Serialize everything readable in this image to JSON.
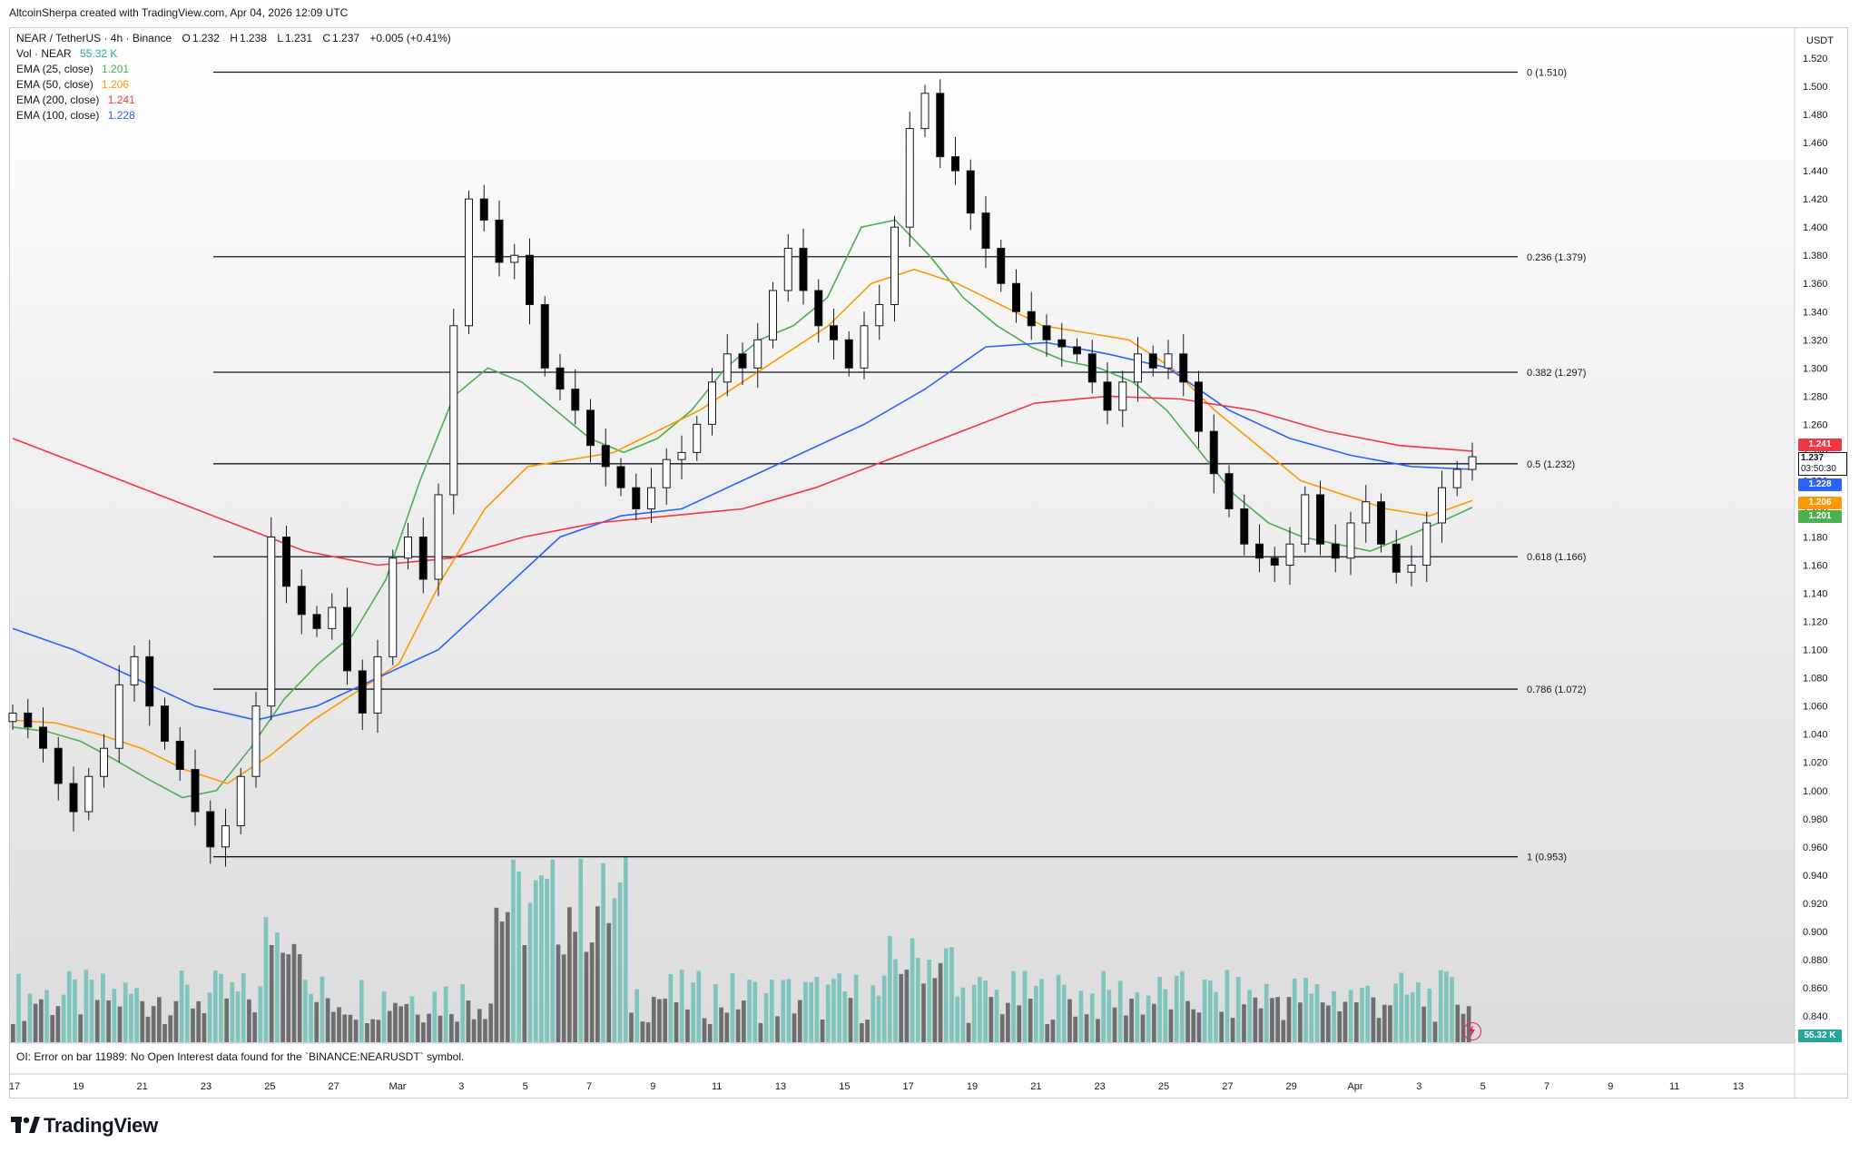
{
  "header": {
    "credit": "AltcoinSherpa created with TradingView.com, Apr 04, 2026 12:09 UTC"
  },
  "legend": {
    "symbol": "NEAR / TetherUS · 4h · Binance",
    "open_label": "O",
    "open": "1.232",
    "high_label": "H",
    "high": "1.238",
    "low_label": "L",
    "low": "1.231",
    "close_label": "C",
    "close": "1.237",
    "change": "+0.005 (+0.41%)",
    "volume": {
      "label": "Vol · NEAR",
      "value": "55.32 K"
    },
    "indicators": [
      {
        "label": "EMA (25, close)",
        "value": "1.201",
        "color": "#4caf50"
      },
      {
        "label": "EMA (50, close)",
        "value": "1.206",
        "color": "#ff9800"
      },
      {
        "label": "EMA (200, close)",
        "value": "1.241",
        "color": "#f23645"
      },
      {
        "label": "EMA (100, close)",
        "value": "1.228",
        "color": "#2962ff"
      }
    ]
  },
  "price_axis": {
    "currency": "USDT",
    "last_price": "1.237",
    "countdown": "03:50:30",
    "volume_tag": "55.32 K"
  },
  "oi_error": "OI: Error on bar 11989: No Open Interest data found for the `BINANCE:NEARUSDT` symbol.",
  "brand": "TradingView",
  "colors": {
    "up": "#ffffff",
    "down": "#000000",
    "vol_up": "#7fc4bd",
    "vol_down": "#6e6e6e",
    "ema25": "#4caf50",
    "ema50": "#ff9800",
    "ema100": "#2962ff",
    "ema200": "#f23645"
  },
  "chart_data": {
    "type": "candlestick",
    "ylim": [
      0.82,
      1.53
    ],
    "y_ticks": [
      "1.520",
      "1.500",
      "1.480",
      "1.460",
      "1.440",
      "1.420",
      "1.400",
      "1.380",
      "1.360",
      "1.340",
      "1.320",
      "1.300",
      "1.280",
      "1.260",
      "1.240",
      "1.220",
      "1.200",
      "1.180",
      "1.160",
      "1.140",
      "1.120",
      "1.100",
      "1.080",
      "1.060",
      "1.040",
      "1.020",
      "1.000",
      "0.980",
      "0.960",
      "0.940",
      "0.920",
      "0.900",
      "0.880",
      "0.860",
      "0.840"
    ],
    "x_ticks": [
      "17",
      "19",
      "21",
      "23",
      "25",
      "27",
      "Mar",
      "3",
      "5",
      "7",
      "9",
      "11",
      "13",
      "15",
      "17",
      "19",
      "21",
      "23",
      "25",
      "27",
      "29",
      "Apr",
      "3",
      "5",
      "7",
      "9",
      "11",
      "13"
    ],
    "fib_levels": [
      {
        "label": "0 (1.510)",
        "value": 1.51
      },
      {
        "label": "0.236 (1.379)",
        "value": 1.379
      },
      {
        "label": "0.382 (1.297)",
        "value": 1.297
      },
      {
        "label": "0.5 (1.232)",
        "value": 1.232
      },
      {
        "label": "0.618 (1.166)",
        "value": 1.166
      },
      {
        "label": "0.786 (1.072)",
        "value": 1.072
      },
      {
        "label": "1 (0.953)",
        "value": 0.953
      }
    ],
    "series": [
      {
        "name": "NEAR / TetherUS",
        "values": [
          1.055,
          1.045,
          1.03,
          1.005,
          0.985,
          1.01,
          1.03,
          1.075,
          1.095,
          1.06,
          1.035,
          1.015,
          0.985,
          0.96,
          0.975,
          1.01,
          1.06,
          1.18,
          1.145,
          1.125,
          1.115,
          1.13,
          1.085,
          1.055,
          1.095,
          1.165,
          1.18,
          1.15,
          1.21,
          1.33,
          1.42,
          1.405,
          1.375,
          1.38,
          1.345,
          1.3,
          1.285,
          1.27,
          1.245,
          1.23,
          1.215,
          1.2,
          1.215,
          1.235,
          1.24,
          1.26,
          1.29,
          1.31,
          1.3,
          1.32,
          1.355,
          1.385,
          1.355,
          1.33,
          1.32,
          1.3,
          1.33,
          1.345,
          1.4,
          1.47,
          1.495,
          1.45,
          1.44,
          1.41,
          1.385,
          1.36,
          1.34,
          1.33,
          1.32,
          1.315,
          1.31,
          1.29,
          1.27,
          1.29,
          1.31,
          1.3,
          1.31,
          1.29,
          1.255,
          1.225,
          1.2,
          1.175,
          1.165,
          1.16,
          1.175,
          1.21,
          1.175,
          1.165,
          1.19,
          1.205,
          1.175,
          1.155,
          1.16,
          1.19,
          1.215,
          1.228,
          1.237
        ]
      },
      {
        "name": "EMA (25, close)",
        "values": [
          1.045,
          1.042,
          1.035,
          1.022,
          1.008,
          0.995,
          1.0,
          1.03,
          1.065,
          1.09,
          1.11,
          1.15,
          1.22,
          1.28,
          1.3,
          1.29,
          1.27,
          1.25,
          1.24,
          1.25,
          1.27,
          1.3,
          1.32,
          1.33,
          1.35,
          1.4,
          1.405,
          1.38,
          1.35,
          1.33,
          1.315,
          1.305,
          1.3,
          1.29,
          1.27,
          1.24,
          1.21,
          1.19,
          1.18,
          1.175,
          1.17,
          1.18,
          1.19,
          1.201
        ]
      },
      {
        "name": "EMA (50, close)",
        "values": [
          1.05,
          1.048,
          1.04,
          1.03,
          1.015,
          1.005,
          1.025,
          1.05,
          1.07,
          1.09,
          1.15,
          1.2,
          1.23,
          1.235,
          1.24,
          1.255,
          1.27,
          1.29,
          1.31,
          1.33,
          1.36,
          1.37,
          1.36,
          1.345,
          1.33,
          1.325,
          1.32,
          1.3,
          1.27,
          1.245,
          1.22,
          1.21,
          1.2,
          1.195,
          1.206
        ]
      },
      {
        "name": "EMA (100, close)",
        "values": [
          1.115,
          1.1,
          1.08,
          1.06,
          1.05,
          1.06,
          1.08,
          1.1,
          1.14,
          1.18,
          1.195,
          1.2,
          1.22,
          1.24,
          1.26,
          1.285,
          1.315,
          1.318,
          1.31,
          1.3,
          1.27,
          1.25,
          1.238,
          1.23,
          1.228
        ]
      },
      {
        "name": "EMA (200, close)",
        "values": [
          1.25,
          1.23,
          1.21,
          1.19,
          1.17,
          1.16,
          1.165,
          1.18,
          1.19,
          1.195,
          1.2,
          1.215,
          1.235,
          1.255,
          1.275,
          1.28,
          1.278,
          1.27,
          1.255,
          1.245,
          1.241
        ]
      }
    ]
  }
}
